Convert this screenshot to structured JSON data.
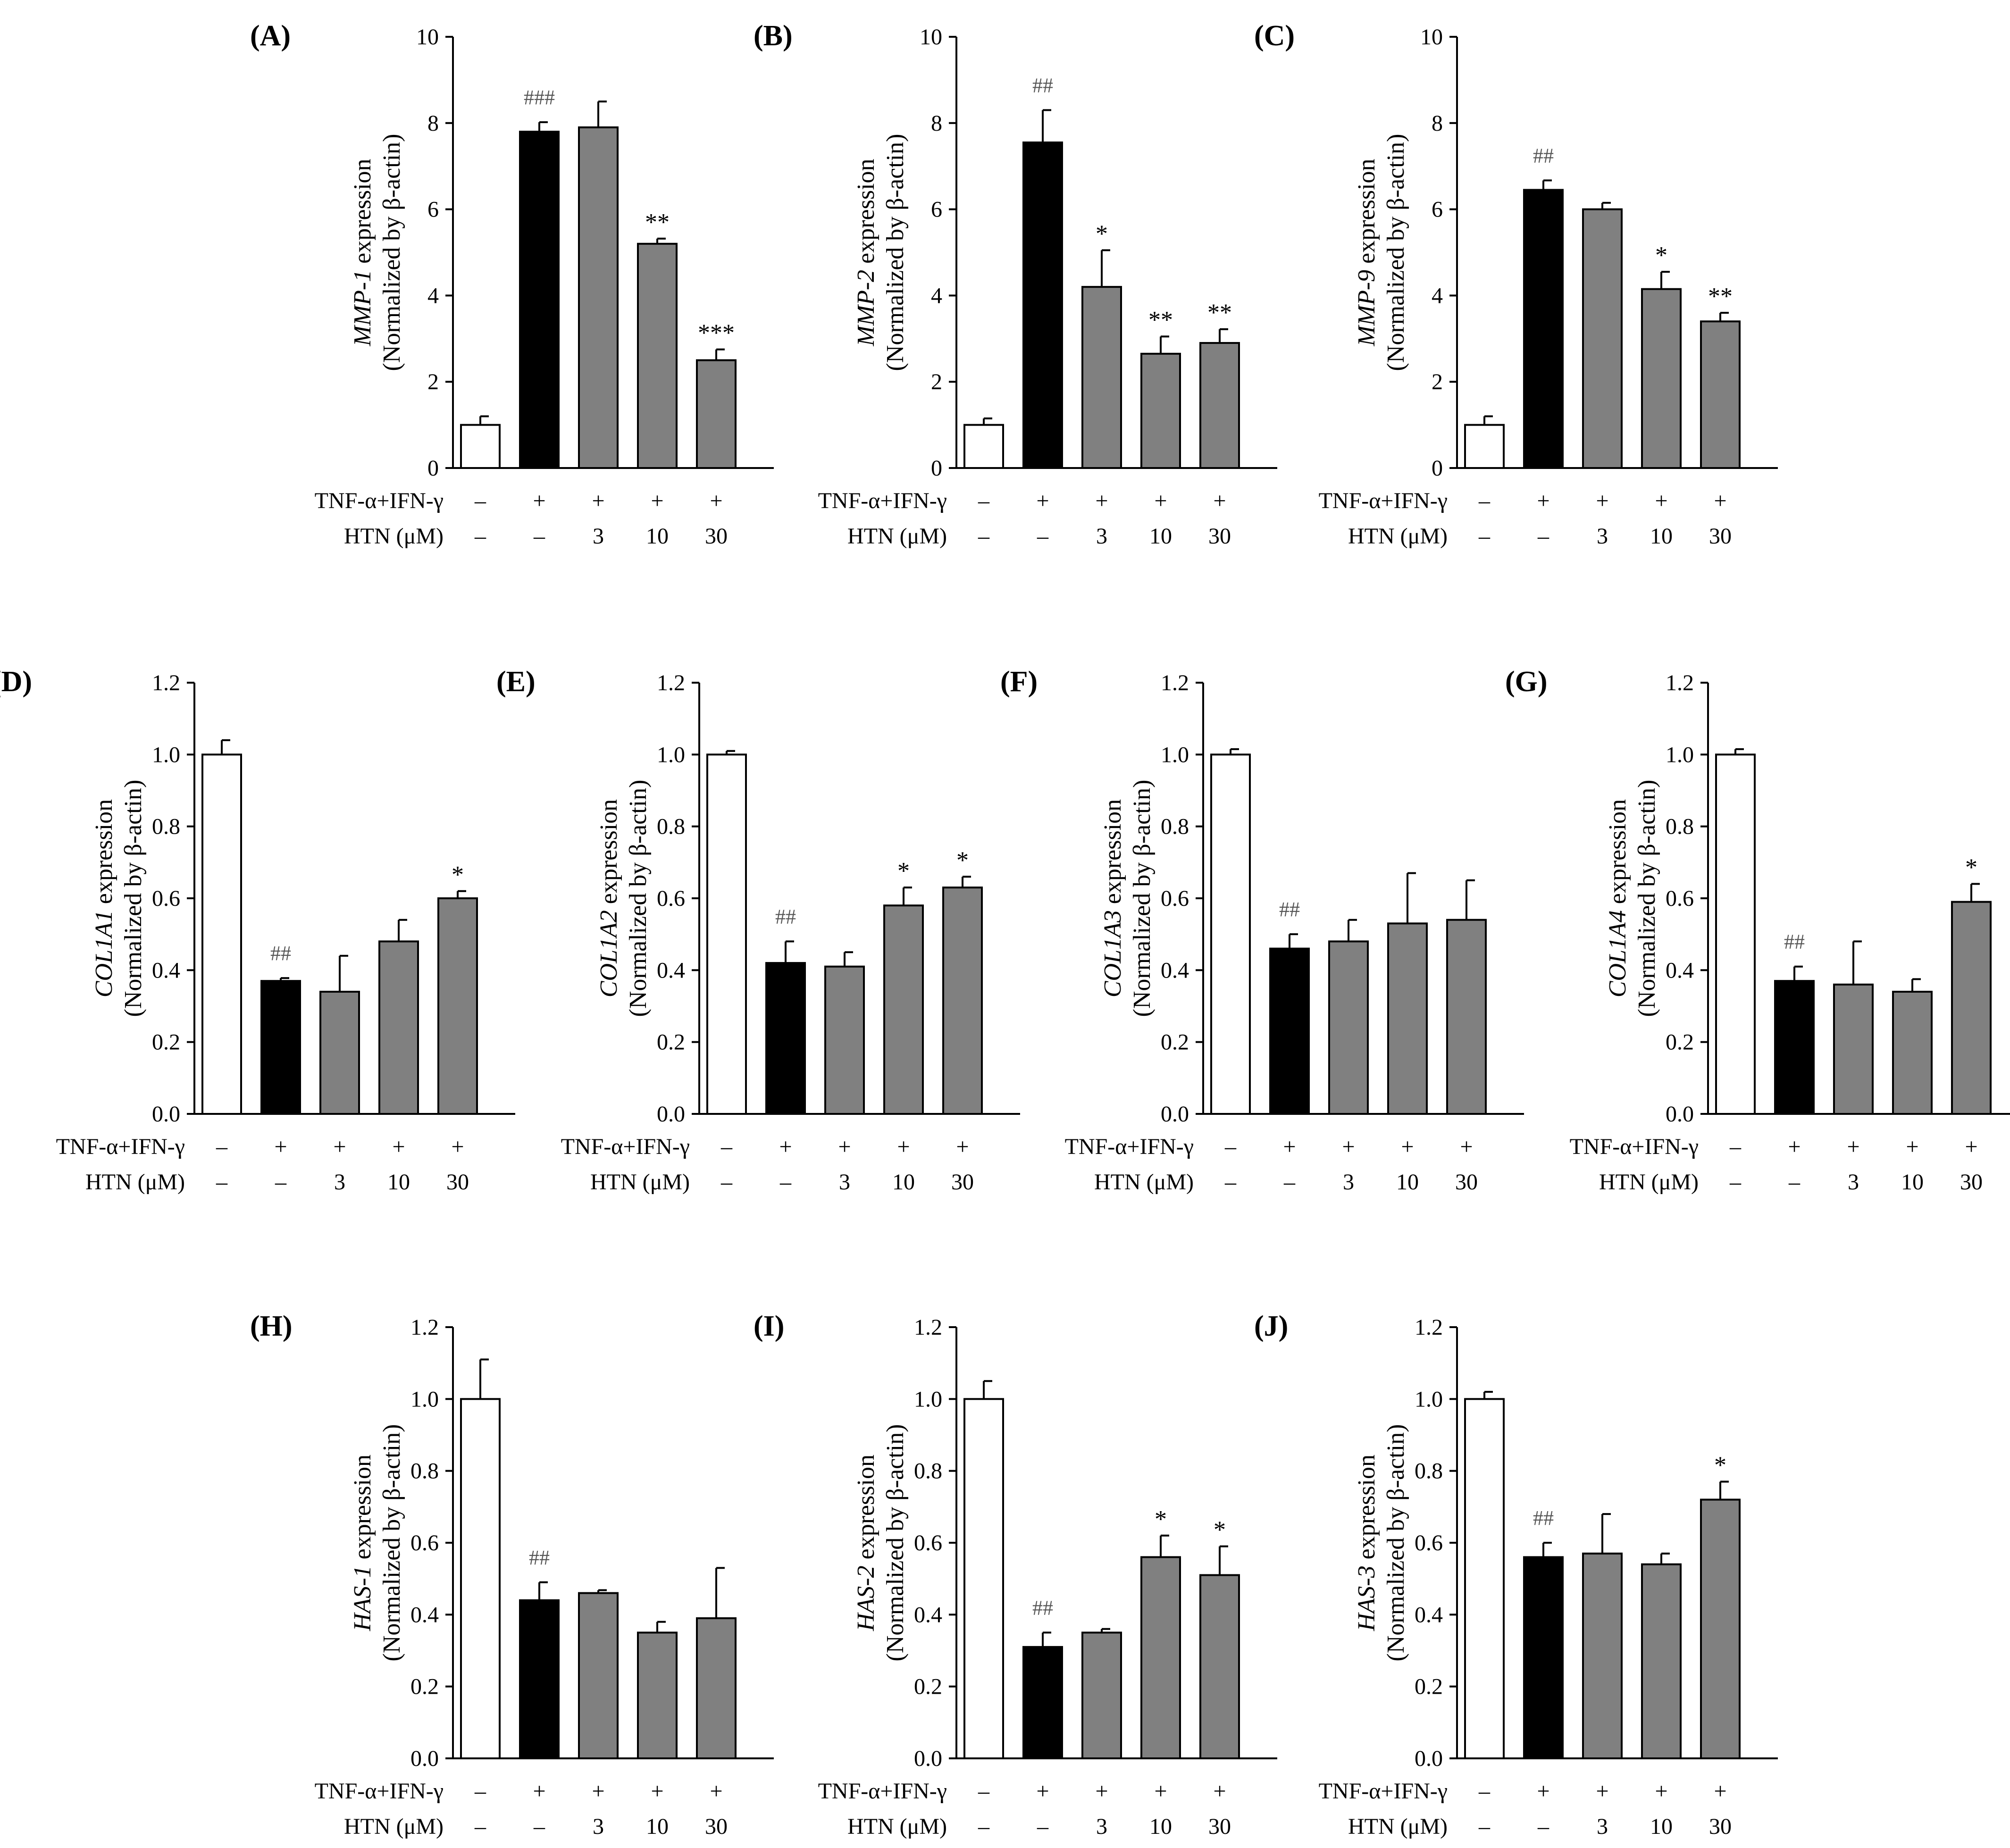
{
  "figure": {
    "condition_rows": [
      {
        "label": "TNF-α+IFN-γ",
        "values": [
          "–",
          "+",
          "+",
          "+",
          "+"
        ]
      },
      {
        "label": "HTN (μM)",
        "values": [
          "–",
          "–",
          "3",
          "10",
          "30"
        ]
      }
    ],
    "ylabel_suffix": "expression",
    "ylabel_line2": "(Normalized by β-actin)",
    "bar_colors": [
      "#ffffff",
      "#000000",
      "#808080",
      "#808080",
      "#808080"
    ]
  },
  "chart_data": [
    {
      "label": "(A)",
      "type": "bar",
      "gene": "MMP-1",
      "ylim": [
        0,
        10
      ],
      "yticks": [
        "0",
        "2",
        "4",
        "6",
        "8",
        "10"
      ],
      "values": [
        1.0,
        7.8,
        7.9,
        5.2,
        2.5
      ],
      "errors": [
        0.2,
        0.22,
        0.6,
        0.12,
        0.25
      ],
      "annotations": [
        "",
        "###",
        "",
        "**",
        "***"
      ]
    },
    {
      "label": "(B)",
      "type": "bar",
      "gene": "MMP-2",
      "ylim": [
        0,
        10
      ],
      "yticks": [
        "0",
        "2",
        "4",
        "6",
        "8",
        "10"
      ],
      "values": [
        1.0,
        7.55,
        4.2,
        2.65,
        2.9
      ],
      "errors": [
        0.15,
        0.75,
        0.85,
        0.4,
        0.32
      ],
      "annotations": [
        "",
        "##",
        "*",
        "**",
        "**"
      ]
    },
    {
      "label": "(C)",
      "type": "bar",
      "gene": "MMP-9",
      "ylim": [
        0,
        10
      ],
      "yticks": [
        "0",
        "2",
        "4",
        "6",
        "8",
        "10"
      ],
      "values": [
        1.0,
        6.45,
        6.0,
        4.15,
        3.4
      ],
      "errors": [
        0.2,
        0.22,
        0.15,
        0.4,
        0.2
      ],
      "annotations": [
        "",
        "##",
        "",
        "*",
        "**"
      ]
    },
    {
      "label": "(D)",
      "type": "bar",
      "gene": "COL1A1",
      "ylim": [
        0,
        1.2
      ],
      "yticks": [
        "0.0",
        "0.2",
        "0.4",
        "0.6",
        "0.8",
        "1.0",
        "1.2"
      ],
      "values": [
        1.0,
        0.37,
        0.34,
        0.48,
        0.6
      ],
      "errors": [
        0.04,
        0.008,
        0.1,
        0.06,
        0.02
      ],
      "annotations": [
        "",
        "##",
        "",
        "",
        "*"
      ]
    },
    {
      "label": "(E)",
      "type": "bar",
      "gene": "COL1A2",
      "ylim": [
        0,
        1.2
      ],
      "yticks": [
        "0.0",
        "0.2",
        "0.4",
        "0.6",
        "0.8",
        "1.0",
        "1.2"
      ],
      "values": [
        1.0,
        0.42,
        0.41,
        0.58,
        0.63
      ],
      "errors": [
        0.01,
        0.06,
        0.04,
        0.05,
        0.03
      ],
      "annotations": [
        "",
        "##",
        "",
        "*",
        "*"
      ]
    },
    {
      "label": "(F)",
      "type": "bar",
      "gene": "COL1A3",
      "ylim": [
        0,
        1.2
      ],
      "yticks": [
        "0.0",
        "0.2",
        "0.4",
        "0.6",
        "0.8",
        "1.0",
        "1.2"
      ],
      "values": [
        1.0,
        0.46,
        0.48,
        0.53,
        0.54
      ],
      "errors": [
        0.015,
        0.04,
        0.06,
        0.14,
        0.11
      ],
      "annotations": [
        "",
        "##",
        "",
        "",
        ""
      ]
    },
    {
      "label": "(G)",
      "type": "bar",
      "gene": "COL1A4",
      "ylim": [
        0,
        1.2
      ],
      "yticks": [
        "0.0",
        "0.2",
        "0.4",
        "0.6",
        "0.8",
        "1.0",
        "1.2"
      ],
      "values": [
        1.0,
        0.37,
        0.36,
        0.34,
        0.59
      ],
      "errors": [
        0.015,
        0.04,
        0.12,
        0.035,
        0.05
      ],
      "annotations": [
        "",
        "##",
        "",
        "",
        "*"
      ]
    },
    {
      "label": "(H)",
      "type": "bar",
      "gene": "HAS-1",
      "ylim": [
        0,
        1.2
      ],
      "yticks": [
        "0.0",
        "0.2",
        "0.4",
        "0.6",
        "0.8",
        "1.0",
        "1.2"
      ],
      "values": [
        1.0,
        0.44,
        0.46,
        0.35,
        0.39
      ],
      "errors": [
        0.11,
        0.05,
        0.008,
        0.03,
        0.14
      ],
      "annotations": [
        "",
        "##",
        "",
        "",
        ""
      ]
    },
    {
      "label": "(I)",
      "type": "bar",
      "gene": "HAS-2",
      "ylim": [
        0,
        1.2
      ],
      "yticks": [
        "0.0",
        "0.2",
        "0.4",
        "0.6",
        "0.8",
        "1.0",
        "1.2"
      ],
      "values": [
        1.0,
        0.31,
        0.35,
        0.56,
        0.51
      ],
      "errors": [
        0.05,
        0.04,
        0.01,
        0.06,
        0.08
      ],
      "annotations": [
        "",
        "##",
        "",
        "*",
        "*"
      ]
    },
    {
      "label": "(J)",
      "type": "bar",
      "gene": "HAS-3",
      "ylim": [
        0,
        1.2
      ],
      "yticks": [
        "0.0",
        "0.2",
        "0.4",
        "0.6",
        "0.8",
        "1.0",
        "1.2"
      ],
      "values": [
        1.0,
        0.56,
        0.57,
        0.54,
        0.72
      ],
      "errors": [
        0.02,
        0.04,
        0.11,
        0.03,
        0.05
      ],
      "annotations": [
        "",
        "##",
        "",
        "",
        "*"
      ]
    }
  ]
}
